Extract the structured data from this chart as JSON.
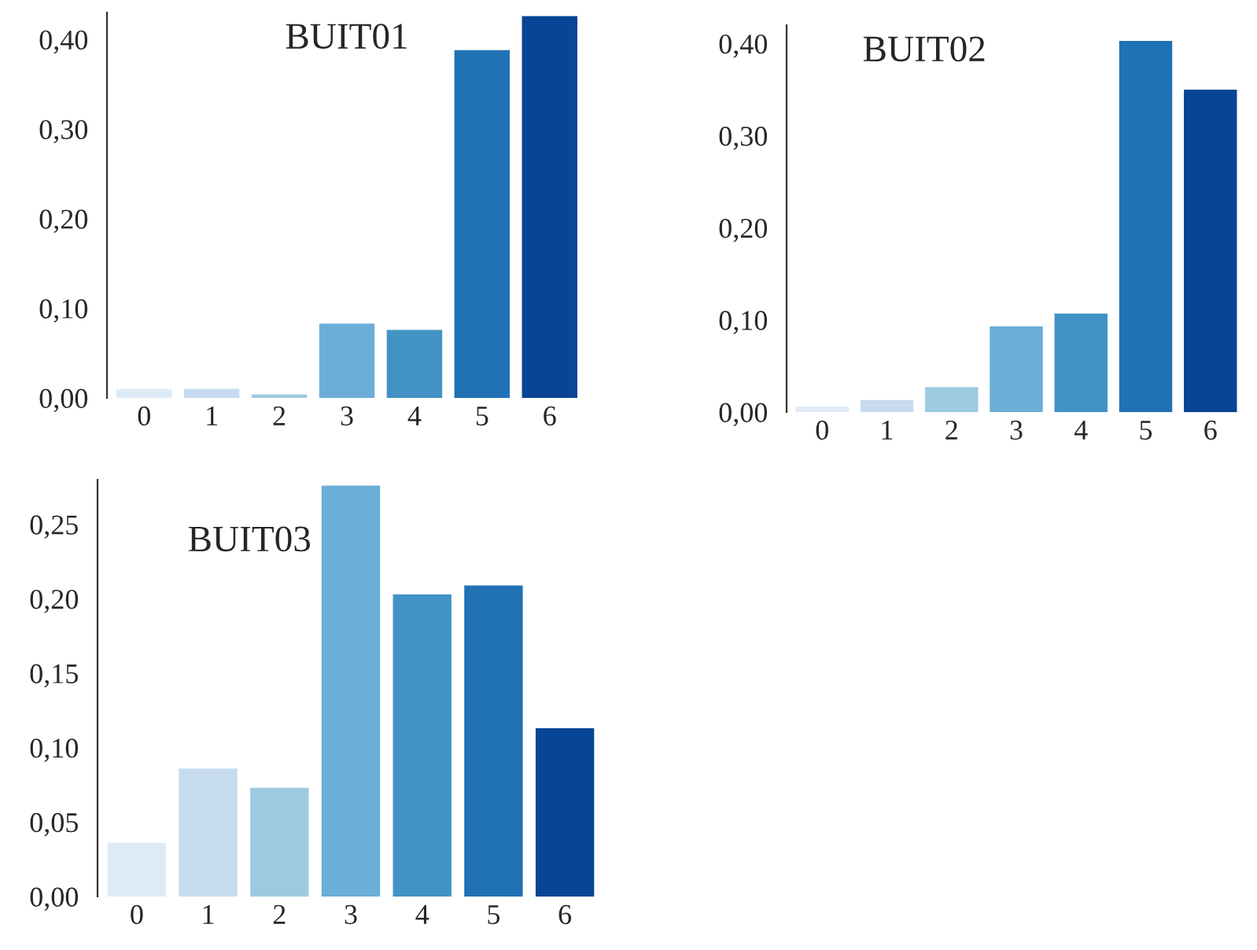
{
  "chart_data": [
    {
      "type": "bar",
      "title": "BUIT01",
      "categories": [
        "0",
        "1",
        "2",
        "3",
        "4",
        "5",
        "6"
      ],
      "values": [
        0.01,
        0.01,
        0.004,
        0.083,
        0.076,
        0.388,
        0.426
      ],
      "colors": [
        "#deebf7",
        "#c6dbef",
        "#9ecae1",
        "#6baed6",
        "#4292c6",
        "#2171b5",
        "#084594"
      ],
      "ylim": [
        0,
        0.43
      ],
      "yticks": [
        {
          "value": 0,
          "label": "0,00"
        },
        {
          "value": 0.1,
          "label": "0,10"
        },
        {
          "value": 0.2,
          "label": "0,20"
        },
        {
          "value": 0.3,
          "label": "0,30"
        },
        {
          "value": 0.4,
          "label": "0,40"
        }
      ],
      "grid": false,
      "legend": false
    },
    {
      "type": "bar",
      "title": "BUIT02",
      "categories": [
        "0",
        "1",
        "2",
        "3",
        "4",
        "5",
        "6"
      ],
      "values": [
        0.006,
        0.013,
        0.027,
        0.093,
        0.107,
        0.403,
        0.35
      ],
      "colors": [
        "#deebf7",
        "#c6dbef",
        "#9ecae1",
        "#6baed6",
        "#4292c6",
        "#2171b5",
        "#084594"
      ],
      "ylim": [
        0,
        0.42
      ],
      "yticks": [
        {
          "value": 0,
          "label": "0,00"
        },
        {
          "value": 0.1,
          "label": "0,10"
        },
        {
          "value": 0.2,
          "label": "0,20"
        },
        {
          "value": 0.3,
          "label": "0,30"
        },
        {
          "value": 0.4,
          "label": "0,40"
        }
      ],
      "grid": false,
      "legend": false
    },
    {
      "type": "bar",
      "title": "BUIT03",
      "categories": [
        "0",
        "1",
        "2",
        "3",
        "4",
        "5",
        "6"
      ],
      "values": [
        0.036,
        0.086,
        0.073,
        0.276,
        0.203,
        0.209,
        0.113
      ],
      "colors": [
        "#deebf7",
        "#c6dbef",
        "#9ecae1",
        "#6baed6",
        "#4292c6",
        "#2171b5",
        "#084594"
      ],
      "ylim": [
        0,
        0.28
      ],
      "yticks": [
        {
          "value": 0,
          "label": "0,00"
        },
        {
          "value": 0.05,
          "label": "0,05"
        },
        {
          "value": 0.1,
          "label": "0,10"
        },
        {
          "value": 0.15,
          "label": "0,15"
        },
        {
          "value": 0.2,
          "label": "0,20"
        },
        {
          "value": 0.25,
          "label": "0,25"
        }
      ],
      "grid": false,
      "legend": false
    }
  ]
}
